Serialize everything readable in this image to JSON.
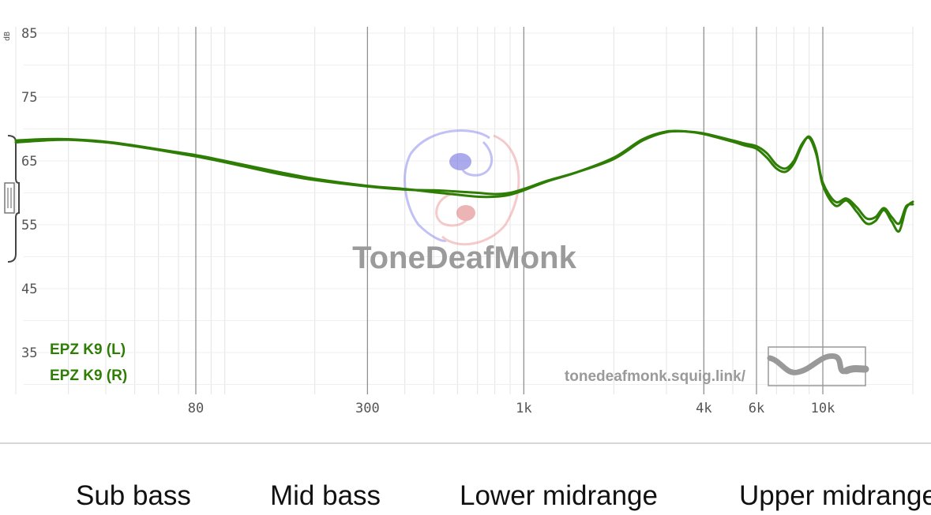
{
  "chart_data": {
    "type": "line",
    "x_scale": "log",
    "y_unit": "dB",
    "xlim": [
      20,
      20000
    ],
    "ylim": [
      30,
      85
    ],
    "yticks": [
      85,
      75,
      65,
      55,
      45,
      35
    ],
    "xticks": [
      {
        "value": 80,
        "label": "80"
      },
      {
        "value": 300,
        "label": "300"
      },
      {
        "value": 1000,
        "label": "1k"
      },
      {
        "value": 4000,
        "label": "4k"
      },
      {
        "value": 6000,
        "label": "6k"
      },
      {
        "value": 10000,
        "label": "10k"
      }
    ],
    "grid": true,
    "legend_position": "bottom-left",
    "series": [
      {
        "name": "EPZ K9 (L)",
        "color": "#2e7d05",
        "points": [
          [
            20,
            68.2
          ],
          [
            25,
            68.4
          ],
          [
            30,
            68.4
          ],
          [
            40,
            68.0
          ],
          [
            50,
            67.4
          ],
          [
            60,
            66.8
          ],
          [
            80,
            65.9
          ],
          [
            100,
            65.0
          ],
          [
            150,
            63.3
          ],
          [
            200,
            62.2
          ],
          [
            300,
            61.1
          ],
          [
            400,
            60.6
          ],
          [
            500,
            60.1
          ],
          [
            600,
            59.7
          ],
          [
            700,
            59.4
          ],
          [
            800,
            59.4
          ],
          [
            900,
            59.7
          ],
          [
            1000,
            60.4
          ],
          [
            1200,
            61.8
          ],
          [
            1500,
            63.2
          ],
          [
            2000,
            65.5
          ],
          [
            2500,
            68.4
          ],
          [
            3000,
            69.6
          ],
          [
            3500,
            69.6
          ],
          [
            4000,
            69.2
          ],
          [
            5000,
            68.0
          ],
          [
            5500,
            67.4
          ],
          [
            6000,
            66.9
          ],
          [
            6500,
            65.5
          ],
          [
            7000,
            63.8
          ],
          [
            7500,
            63.3
          ],
          [
            8000,
            64.6
          ],
          [
            8500,
            67.3
          ],
          [
            9000,
            68.8
          ],
          [
            9500,
            66.5
          ],
          [
            10000,
            61.2
          ],
          [
            11000,
            58.0
          ],
          [
            12000,
            58.8
          ],
          [
            13000,
            57.0
          ],
          [
            14000,
            55.2
          ],
          [
            15000,
            55.6
          ],
          [
            16000,
            57.3
          ],
          [
            17000,
            55.5
          ],
          [
            18000,
            54.0
          ],
          [
            19000,
            57.6
          ],
          [
            20000,
            58.6
          ]
        ]
      },
      {
        "name": "EPZ K9 (R)",
        "color": "#2e7d05",
        "points": [
          [
            20,
            67.9
          ],
          [
            25,
            68.2
          ],
          [
            30,
            68.3
          ],
          [
            40,
            67.9
          ],
          [
            50,
            67.3
          ],
          [
            60,
            66.7
          ],
          [
            80,
            65.7
          ],
          [
            100,
            64.8
          ],
          [
            150,
            63.0
          ],
          [
            200,
            62.0
          ],
          [
            300,
            61.0
          ],
          [
            400,
            60.5
          ],
          [
            500,
            60.4
          ],
          [
            600,
            60.2
          ],
          [
            700,
            60.0
          ],
          [
            800,
            59.8
          ],
          [
            900,
            60.0
          ],
          [
            1000,
            60.6
          ],
          [
            1200,
            61.9
          ],
          [
            1500,
            63.2
          ],
          [
            2000,
            65.3
          ],
          [
            2500,
            68.2
          ],
          [
            3000,
            69.5
          ],
          [
            3500,
            69.6
          ],
          [
            4000,
            69.3
          ],
          [
            5000,
            68.2
          ],
          [
            5500,
            67.7
          ],
          [
            6000,
            67.3
          ],
          [
            6500,
            66.2
          ],
          [
            7000,
            64.4
          ],
          [
            7500,
            63.8
          ],
          [
            8000,
            65.0
          ],
          [
            8500,
            67.6
          ],
          [
            9000,
            68.6
          ],
          [
            9500,
            66.1
          ],
          [
            10000,
            61.6
          ],
          [
            11000,
            58.6
          ],
          [
            12000,
            59.1
          ],
          [
            13000,
            57.7
          ],
          [
            14000,
            56.0
          ],
          [
            15000,
            56.2
          ],
          [
            16000,
            57.6
          ],
          [
            17000,
            56.2
          ],
          [
            18000,
            55.2
          ],
          [
            19000,
            57.9
          ],
          [
            20000,
            58.2
          ]
        ]
      }
    ]
  },
  "branding": {
    "watermark": "ToneDeafMonk",
    "site": "tonedeafmonk.squig.link/"
  },
  "bands": [
    "Sub bass",
    "Mid bass",
    "Lower midrange",
    "Upper midrange"
  ],
  "units": {
    "db": "dB"
  }
}
